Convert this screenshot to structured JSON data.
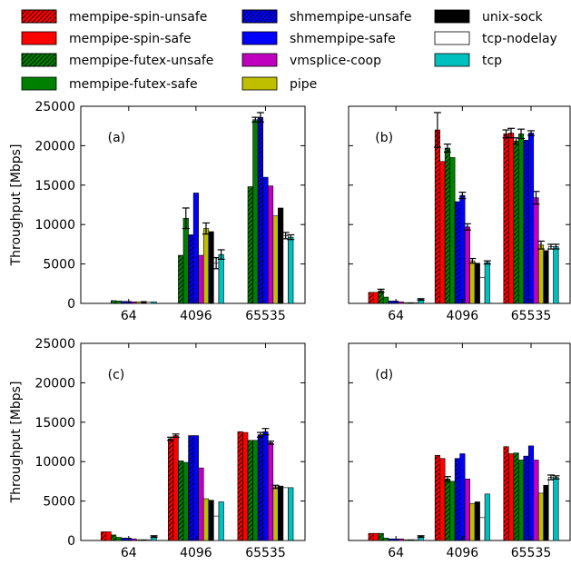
{
  "figure": {
    "ylabel": "Throughput [Mbps]"
  },
  "legend": [
    {
      "name": "mempipe-spin-unsafe",
      "color": "#ff0000",
      "hatch": true
    },
    {
      "name": "mempipe-spin-safe",
      "color": "#ff0000",
      "hatch": false
    },
    {
      "name": "mempipe-futex-unsafe",
      "color": "#008000",
      "hatch": true
    },
    {
      "name": "mempipe-futex-safe",
      "color": "#008000",
      "hatch": false
    },
    {
      "name": "shmempipe-unsafe",
      "color": "#0000ff",
      "hatch": true
    },
    {
      "name": "shmempipe-safe",
      "color": "#0000ff",
      "hatch": false
    },
    {
      "name": "vmsplice-coop",
      "color": "#bf00bf",
      "hatch": false
    },
    {
      "name": "pipe",
      "color": "#bfbf00",
      "hatch": false
    },
    {
      "name": "unix-sock",
      "color": "#000000",
      "hatch": false
    },
    {
      "name": "tcp-nodelay",
      "color": "#ffffff",
      "hatch": false
    },
    {
      "name": "tcp",
      "color": "#00bfbf",
      "hatch": false
    }
  ],
  "chart_data": [
    {
      "type": "bar",
      "panel": "(a)",
      "categories": [
        "64",
        "4096",
        "65535"
      ],
      "ylim": [
        0,
        25000
      ],
      "yticks": [
        "0",
        "5000",
        "10000",
        "15000",
        "20000",
        "25000"
      ],
      "ylabel": "Throughput [Mbps]",
      "show_yticks": true,
      "series": [
        {
          "name": "mempipe-spin-unsafe",
          "values": [
            0,
            0,
            0
          ],
          "err": [
            0,
            0,
            0
          ]
        },
        {
          "name": "mempipe-spin-safe",
          "values": [
            0,
            0,
            0
          ],
          "err": [
            0,
            0,
            0
          ]
        },
        {
          "name": "mempipe-futex-unsafe",
          "values": [
            350,
            6100,
            14800
          ],
          "err": [
            0,
            0,
            0
          ]
        },
        {
          "name": "mempipe-futex-safe",
          "values": [
            300,
            10800,
            23300
          ],
          "err": [
            0,
            1300,
            300
          ]
        },
        {
          "name": "shmempipe-unsafe",
          "values": [
            250,
            8700,
            23600
          ],
          "err": [
            0,
            0,
            600
          ]
        },
        {
          "name": "shmempipe-safe",
          "values": [
            250,
            14000,
            16000
          ],
          "err": [
            0,
            0,
            0
          ]
        },
        {
          "name": "vmsplice-coop",
          "values": [
            200,
            6100,
            14900
          ],
          "err": [
            0,
            0,
            0
          ]
        },
        {
          "name": "pipe",
          "values": [
            200,
            9500,
            11100
          ],
          "err": [
            0,
            700,
            0
          ]
        },
        {
          "name": "unix-sock",
          "values": [
            250,
            9100,
            12100
          ],
          "err": [
            0,
            0,
            0
          ]
        },
        {
          "name": "tcp-nodelay",
          "values": [
            200,
            5100,
            8600
          ],
          "err": [
            0,
            700,
            400
          ]
        },
        {
          "name": "tcp",
          "values": [
            200,
            6200,
            8400
          ],
          "err": [
            0,
            600,
            300
          ]
        }
      ]
    },
    {
      "type": "bar",
      "panel": "(b)",
      "categories": [
        "64",
        "4096",
        "65535"
      ],
      "ylim": [
        0,
        25000
      ],
      "yticks": [
        "0",
        "5000",
        "10000",
        "15000",
        "20000",
        "25000"
      ],
      "ylabel": "",
      "show_yticks": false,
      "series": [
        {
          "name": "mempipe-spin-unsafe",
          "values": [
            1400,
            22000,
            21500
          ],
          "err": [
            0,
            2200,
            500
          ]
        },
        {
          "name": "mempipe-spin-safe",
          "values": [
            1400,
            18000,
            21600
          ],
          "err": [
            0,
            0,
            600
          ]
        },
        {
          "name": "mempipe-futex-unsafe",
          "values": [
            1600,
            19700,
            20600
          ],
          "err": [
            200,
            500,
            400
          ]
        },
        {
          "name": "mempipe-futex-safe",
          "values": [
            800,
            18500,
            21500
          ],
          "err": [
            0,
            0,
            600
          ]
        },
        {
          "name": "shmempipe-unsafe",
          "values": [
            300,
            12900,
            20700
          ],
          "err": [
            0,
            0,
            0
          ]
        },
        {
          "name": "shmempipe-safe",
          "values": [
            300,
            13700,
            21600
          ],
          "err": [
            0,
            400,
            300
          ]
        },
        {
          "name": "vmsplice-coop",
          "values": [
            200,
            9700,
            13400
          ],
          "err": [
            0,
            400,
            800
          ]
        },
        {
          "name": "pipe",
          "values": [
            100,
            5400,
            7400
          ],
          "err": [
            0,
            300,
            500
          ]
        },
        {
          "name": "unix-sock",
          "values": [
            100,
            5100,
            6700
          ],
          "err": [
            0,
            0,
            0
          ]
        },
        {
          "name": "tcp-nodelay",
          "values": [
            100,
            3300,
            7200
          ],
          "err": [
            0,
            0,
            300
          ]
        },
        {
          "name": "tcp",
          "values": [
            500,
            5200,
            7200
          ],
          "err": [
            100,
            200,
            300
          ]
        }
      ]
    },
    {
      "type": "bar",
      "panel": "(c)",
      "categories": [
        "64",
        "4096",
        "65535"
      ],
      "ylim": [
        0,
        25000
      ],
      "yticks": [
        "0",
        "5000",
        "10000",
        "15000",
        "20000",
        "25000"
      ],
      "ylabel": "Throughput [Mbps]",
      "show_yticks": true,
      "series": [
        {
          "name": "mempipe-spin-unsafe",
          "values": [
            1100,
            12900,
            13800
          ],
          "err": [
            0,
            200,
            0
          ]
        },
        {
          "name": "mempipe-spin-safe",
          "values": [
            1100,
            13300,
            13700
          ],
          "err": [
            0,
            200,
            0
          ]
        },
        {
          "name": "mempipe-futex-unsafe",
          "values": [
            700,
            10100,
            12700
          ],
          "err": [
            0,
            0,
            0
          ]
        },
        {
          "name": "mempipe-futex-safe",
          "values": [
            400,
            9900,
            12700
          ],
          "err": [
            0,
            0,
            0
          ]
        },
        {
          "name": "shmempipe-unsafe",
          "values": [
            300,
            13300,
            13400
          ],
          "err": [
            0,
            0,
            300
          ]
        },
        {
          "name": "shmempipe-safe",
          "values": [
            300,
            13300,
            13800
          ],
          "err": [
            0,
            0,
            400
          ]
        },
        {
          "name": "vmsplice-coop",
          "values": [
            200,
            9200,
            12400
          ],
          "err": [
            0,
            0,
            200
          ]
        },
        {
          "name": "pipe",
          "values": [
            100,
            5300,
            6800
          ],
          "err": [
            0,
            0,
            200
          ]
        },
        {
          "name": "unix-sock",
          "values": [
            100,
            5100,
            6900
          ],
          "err": [
            0,
            0,
            0
          ]
        },
        {
          "name": "tcp-nodelay",
          "values": [
            100,
            3100,
            6700
          ],
          "err": [
            0,
            0,
            0
          ]
        },
        {
          "name": "tcp",
          "values": [
            500,
            4900,
            6700
          ],
          "err": [
            100,
            0,
            0
          ]
        }
      ]
    },
    {
      "type": "bar",
      "panel": "(d)",
      "categories": [
        "64",
        "4096",
        "65535"
      ],
      "ylim": [
        0,
        25000
      ],
      "yticks": [
        "0",
        "5000",
        "10000",
        "15000",
        "20000",
        "25000"
      ],
      "ylabel": "",
      "show_yticks": false,
      "series": [
        {
          "name": "mempipe-spin-unsafe",
          "values": [
            900,
            10800,
            11900
          ],
          "err": [
            0,
            0,
            0
          ]
        },
        {
          "name": "mempipe-spin-safe",
          "values": [
            900,
            10400,
            11000
          ],
          "err": [
            0,
            0,
            0
          ]
        },
        {
          "name": "mempipe-futex-unsafe",
          "values": [
            900,
            7800,
            11100
          ],
          "err": [
            0,
            300,
            0
          ]
        },
        {
          "name": "mempipe-futex-safe",
          "values": [
            300,
            7500,
            10200
          ],
          "err": [
            0,
            0,
            0
          ]
        },
        {
          "name": "shmempipe-unsafe",
          "values": [
            200,
            10400,
            10700
          ],
          "err": [
            0,
            0,
            0
          ]
        },
        {
          "name": "shmempipe-safe",
          "values": [
            200,
            11000,
            12000
          ],
          "err": [
            0,
            0,
            0
          ]
        },
        {
          "name": "vmsplice-coop",
          "values": [
            200,
            7800,
            10200
          ],
          "err": [
            0,
            0,
            0
          ]
        },
        {
          "name": "pipe",
          "values": [
            100,
            4700,
            6000
          ],
          "err": [
            0,
            0,
            0
          ]
        },
        {
          "name": "unix-sock",
          "values": [
            100,
            4900,
            7000
          ],
          "err": [
            0,
            0,
            0
          ]
        },
        {
          "name": "tcp-nodelay",
          "values": [
            100,
            2900,
            8000
          ],
          "err": [
            0,
            0,
            300
          ]
        },
        {
          "name": "tcp",
          "values": [
            500,
            5900,
            8000
          ],
          "err": [
            100,
            0,
            200
          ]
        }
      ]
    }
  ]
}
